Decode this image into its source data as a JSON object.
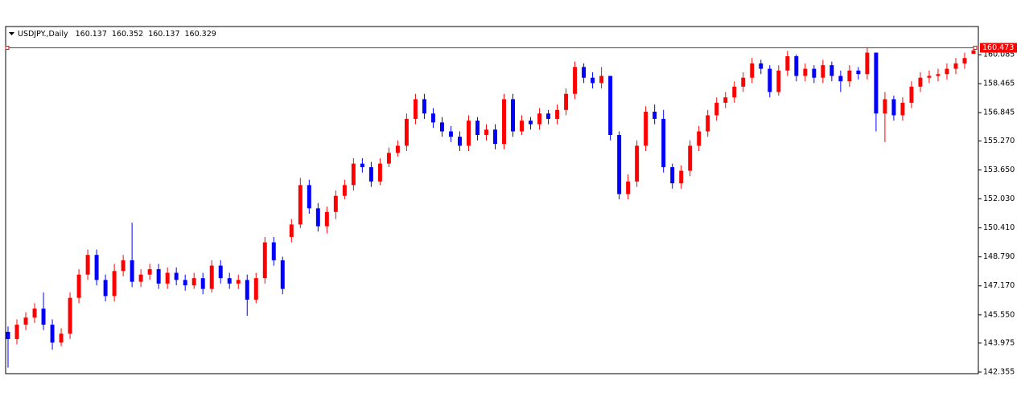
{
  "chart_data": {
    "type": "candlestick",
    "symbol": "USDJPY.,Daily",
    "up_color": "#ff0000",
    "down_color": "#0000ff",
    "hline": {
      "value": 160.473,
      "color": "#ff0000"
    },
    "ylim": [
      142.265,
      161.66
    ],
    "yticks": [
      142.355,
      143.975,
      {
        "value": 145.55,
        "label": "145.550"
      },
      {
        "value": 147.17,
        "label": "147.170"
      },
      {
        "value": 148.79,
        "label": "148.790"
      },
      {
        "value": 150.41,
        "label": "150.410"
      },
      {
        "value": 152.03,
        "label": "152.030"
      },
      {
        "value": 153.65,
        "label": "153.650"
      },
      {
        "value": 155.27,
        "label": "155.270"
      },
      156.845,
      158.465,
      160.085
    ],
    "open": [
      144.6,
      144.2,
      145.0,
      145.4,
      145.9,
      145.0,
      144.0,
      144.5,
      146.5,
      147.8,
      148.9,
      147.5,
      146.6,
      148.0,
      148.6,
      147.4,
      147.8,
      148.1,
      147.3,
      147.9,
      147.5,
      147.2,
      147.6,
      147.0,
      148.3,
      147.6,
      147.3,
      147.5,
      146.4,
      147.6,
      149.6,
      148.6,
      149.9,
      150.6,
      152.8,
      151.5,
      150.5,
      151.3,
      152.2,
      152.8,
      154.0,
      153.8,
      153.0,
      154.0,
      154.6,
      155.0,
      156.5,
      157.6,
      156.8,
      156.3,
      155.8,
      155.5,
      155.0,
      156.4,
      155.6,
      155.9,
      155.1,
      157.6,
      155.8,
      156.4,
      156.2,
      156.8,
      156.5,
      157.0,
      157.9,
      159.4,
      158.8,
      158.5,
      158.9,
      155.6,
      152.3,
      153.0,
      155.0,
      156.9,
      156.5,
      153.8,
      152.9,
      153.6,
      155.0,
      155.8,
      156.7,
      157.4,
      157.7,
      158.3,
      158.8,
      159.6,
      159.3,
      158.0,
      159.2,
      160.0,
      158.9,
      159.3,
      158.8,
      159.5,
      158.9,
      158.6,
      159.2,
      159.0,
      160.2,
      156.8,
      157.6,
      156.7,
      157.4,
      158.3,
      158.8,
      158.9,
      159.0,
      159.3,
      159.6,
      160.137
    ],
    "high": [
      144.9,
      145.3,
      145.7,
      146.2,
      146.8,
      145.3,
      144.8,
      146.8,
      148.1,
      149.2,
      149.2,
      147.8,
      148.4,
      148.9,
      150.7,
      148.1,
      148.4,
      148.4,
      148.2,
      148.2,
      147.8,
      147.9,
      147.9,
      148.6,
      148.6,
      147.9,
      147.8,
      147.8,
      147.9,
      149.9,
      149.9,
      148.8,
      150.9,
      153.2,
      153.1,
      151.8,
      151.6,
      152.5,
      153.1,
      154.3,
      154.3,
      154.1,
      154.3,
      154.9,
      155.3,
      156.8,
      157.9,
      157.9,
      157.1,
      156.6,
      156.1,
      155.8,
      156.7,
      156.6,
      156.2,
      156.2,
      157.9,
      157.9,
      156.7,
      156.6,
      157.1,
      157.0,
      157.3,
      158.2,
      159.7,
      159.6,
      159.1,
      159.4,
      158.9,
      155.8,
      153.4,
      155.3,
      157.2,
      157.3,
      157.0,
      154.0,
      153.9,
      155.3,
      156.1,
      157.0,
      157.7,
      158.0,
      158.6,
      159.1,
      159.9,
      159.8,
      159.5,
      159.5,
      160.3,
      160.1,
      159.6,
      159.5,
      159.8,
      159.7,
      159.2,
      159.5,
      159.4,
      160.5,
      160.2,
      158.0,
      157.8,
      157.7,
      158.6,
      159.1,
      159.2,
      159.3,
      159.6,
      159.9,
      160.2,
      160.352
    ],
    "low": [
      142.6,
      143.9,
      144.7,
      145.1,
      144.7,
      143.6,
      143.8,
      144.2,
      146.2,
      147.5,
      147.2,
      146.3,
      146.3,
      147.7,
      147.1,
      147.1,
      147.5,
      147.0,
      147.0,
      147.2,
      146.9,
      147.0,
      146.7,
      146.8,
      147.3,
      147.0,
      147.0,
      145.5,
      146.2,
      147.3,
      148.3,
      146.7,
      149.6,
      150.4,
      151.2,
      150.2,
      150.1,
      150.9,
      152.0,
      152.5,
      153.5,
      152.7,
      152.8,
      153.8,
      154.4,
      154.7,
      156.2,
      156.5,
      156.0,
      155.5,
      155.2,
      154.7,
      154.7,
      155.3,
      155.3,
      154.8,
      154.8,
      155.5,
      155.6,
      155.9,
      155.9,
      156.2,
      156.2,
      156.7,
      157.6,
      158.5,
      158.2,
      158.2,
      155.3,
      152.0,
      152.0,
      152.7,
      154.7,
      156.2,
      153.5,
      152.6,
      152.6,
      153.3,
      154.7,
      155.5,
      156.4,
      157.1,
      157.4,
      158.0,
      158.5,
      159.0,
      157.7,
      157.8,
      158.9,
      158.6,
      158.6,
      158.5,
      158.5,
      158.6,
      158.0,
      158.3,
      158.7,
      158.7,
      155.8,
      155.2,
      156.4,
      156.4,
      157.1,
      158.0,
      158.5,
      158.6,
      158.7,
      159.0,
      159.3,
      160.137
    ],
    "close": [
      144.2,
      145.0,
      145.4,
      145.9,
      145.0,
      144.0,
      144.5,
      146.5,
      147.8,
      148.9,
      147.5,
      146.6,
      148.0,
      148.6,
      147.4,
      147.8,
      148.1,
      147.3,
      147.9,
      147.5,
      147.2,
      147.6,
      147.0,
      148.3,
      147.6,
      147.3,
      147.5,
      146.4,
      147.6,
      149.6,
      148.6,
      147.0,
      150.6,
      152.8,
      151.5,
      150.5,
      151.3,
      152.2,
      152.8,
      154.0,
      153.8,
      153.0,
      154.0,
      154.6,
      155.0,
      156.5,
      157.6,
      156.8,
      156.3,
      155.8,
      155.5,
      155.0,
      156.4,
      155.6,
      155.9,
      155.1,
      157.6,
      155.8,
      156.4,
      156.2,
      156.8,
      156.5,
      157.0,
      157.9,
      159.4,
      158.8,
      158.5,
      158.9,
      155.6,
      152.3,
      153.0,
      155.0,
      156.9,
      156.5,
      153.8,
      152.9,
      153.6,
      155.0,
      155.8,
      156.7,
      157.4,
      157.7,
      158.3,
      158.8,
      159.6,
      159.3,
      158.0,
      159.2,
      160.0,
      158.9,
      159.3,
      158.8,
      159.5,
      158.9,
      158.6,
      159.2,
      159.0,
      160.2,
      156.8,
      157.6,
      156.7,
      157.4,
      158.3,
      158.8,
      158.9,
      159.0,
      159.3,
      159.6,
      159.9,
      160.329
    ]
  }
}
